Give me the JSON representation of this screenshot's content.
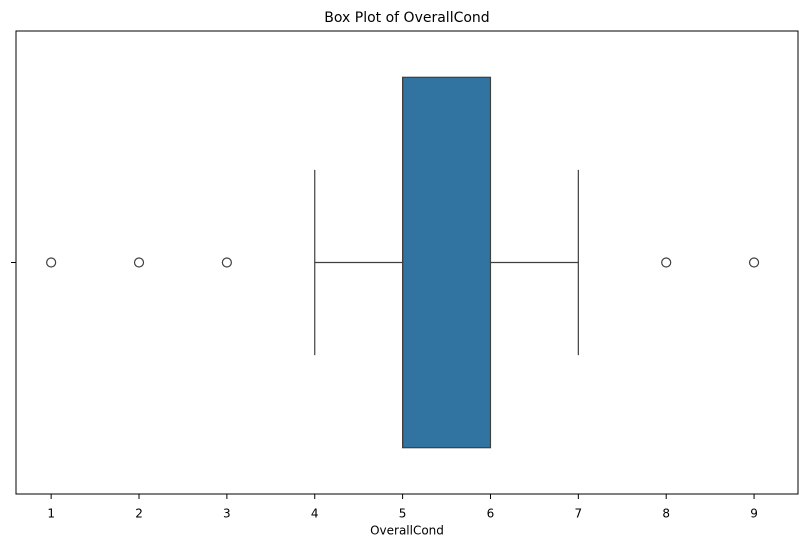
{
  "chart_data": {
    "type": "box",
    "title": "Box Plot of OverallCond",
    "xlabel": "OverallCond",
    "whislo": 4,
    "q1": 5,
    "median": 5,
    "q3": 6,
    "whishi": 7,
    "fliers": [
      1,
      2,
      3,
      8,
      9
    ],
    "color": "#3274a1",
    "xlim": [
      0.6,
      9.5
    ],
    "xticks": [
      1,
      2,
      3,
      4,
      5,
      6,
      7,
      8,
      9
    ]
  }
}
